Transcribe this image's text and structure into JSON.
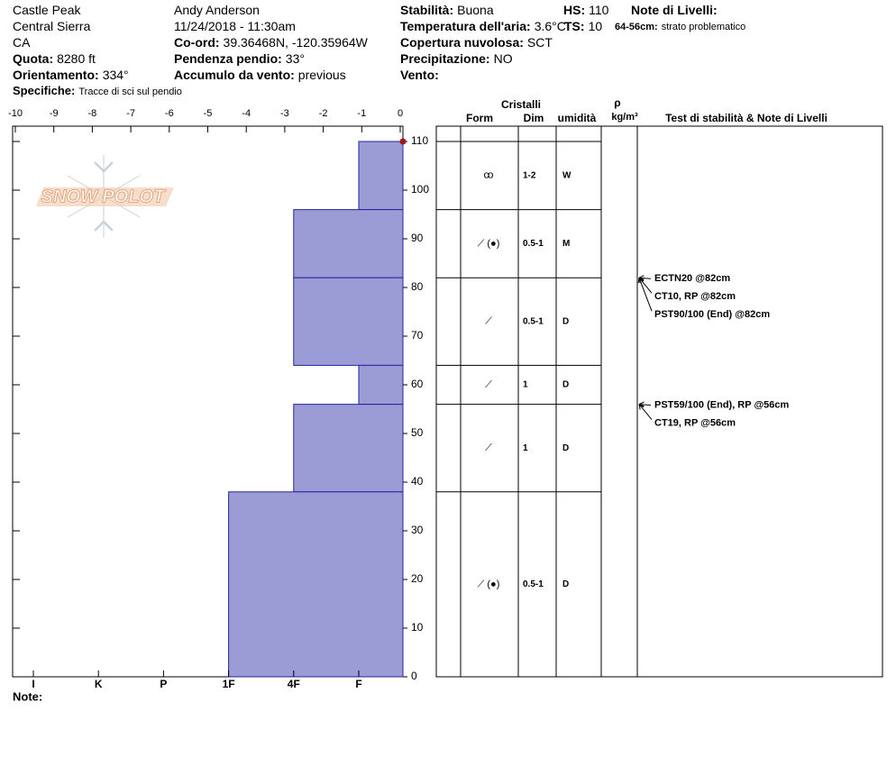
{
  "header": {
    "place": [
      "Castle Peak",
      "Central Sierra",
      "CA"
    ],
    "quota": {
      "label": "Quota:",
      "value": "8280 ft"
    },
    "aspect": {
      "label": "Orientamento:",
      "value": "334°"
    },
    "specifics": {
      "label": "Specifiche:",
      "value": "Tracce di sci sul pendio"
    },
    "observer": "Andy Anderson",
    "datetime": "11/24/2018 - 11:30am",
    "coords": {
      "label": "Co-ord:",
      "value": "39.36468N, -120.35964W"
    },
    "slope": {
      "label": "Pendenza pendio:",
      "value": "33°"
    },
    "wind_loading": {
      "label": "Accumulo da vento:",
      "value": "previous"
    },
    "stability": {
      "label": "Stabilità:",
      "value": "Buona"
    },
    "air_temp": {
      "label": "Temperatura dell'aria:",
      "value": "3.6°C"
    },
    "sky": {
      "label": "Copertura nuvolosa:",
      "value": "SCT"
    },
    "precip": {
      "label": "Precipitazione:",
      "value": "NO"
    },
    "wind": {
      "label": "Vento:"
    },
    "hs": {
      "label": "HS:",
      "value": 110
    },
    "ts": {
      "label": "TS:",
      "value": 10
    },
    "layer_notes": {
      "label": "Note di Livelli:"
    },
    "problem_layer": {
      "label": "64-56cm:",
      "value": "strato problematico"
    }
  },
  "chart_data": {
    "type": "snow-profile",
    "logo": "SNOW POLOT",
    "xlim": [
      -10,
      0
    ],
    "xticks": [
      -10,
      -9,
      -8,
      -7,
      -6,
      -5,
      -4,
      -3,
      -2,
      -1,
      0
    ],
    "ylim": [
      0,
      110
    ],
    "yticks": [
      0,
      10,
      20,
      30,
      40,
      50,
      60,
      70,
      80,
      90,
      100,
      110
    ],
    "hardness_scale": [
      "I",
      "K",
      "P",
      "1F",
      "4F",
      "F"
    ],
    "color": "#9b9bd6",
    "layers": [
      {
        "top": 110,
        "bottom": 96,
        "hardness": "F",
        "form": "ꝏ",
        "size": "1-2",
        "moisture": "W"
      },
      {
        "top": 96,
        "bottom": 82,
        "hardness": "4F",
        "form": "⟋ (●)",
        "size": "0.5-1",
        "moisture": "M"
      },
      {
        "top": 82,
        "bottom": 64,
        "hardness": "4F",
        "form": "⟋",
        "size": "0.5-1",
        "moisture": "D"
      },
      {
        "top": 64,
        "bottom": 56,
        "hardness": "F",
        "form": "⟋",
        "size": "1",
        "moisture": "D"
      },
      {
        "top": 56,
        "bottom": 38,
        "hardness": "4F",
        "form": "⟋",
        "size": "1",
        "moisture": "D"
      },
      {
        "top": 38,
        "bottom": 0,
        "hardness": "1F",
        "form": "⟋ (●)",
        "size": "0.5-1",
        "moisture": "D"
      }
    ],
    "table_header": {
      "crystals": "Cristalli",
      "form": "Form",
      "size": "Dim",
      "moisture": "umidità",
      "density": "ρ",
      "density_unit": "kg/m³",
      "tests": "Test di stabilità & Note di Livelli"
    },
    "tests": [
      {
        "height": 82,
        "label": "ECTN20 @82cm"
      },
      {
        "height": 82,
        "label": "CT10, RP @82cm"
      },
      {
        "height": 82,
        "label": "PST90/100 (End) @82cm"
      },
      {
        "height": 56,
        "label": "PST59/100 (End), RP @56cm"
      },
      {
        "height": 56,
        "label": "CT19, RP @56cm"
      }
    ],
    "note": "Note:"
  }
}
